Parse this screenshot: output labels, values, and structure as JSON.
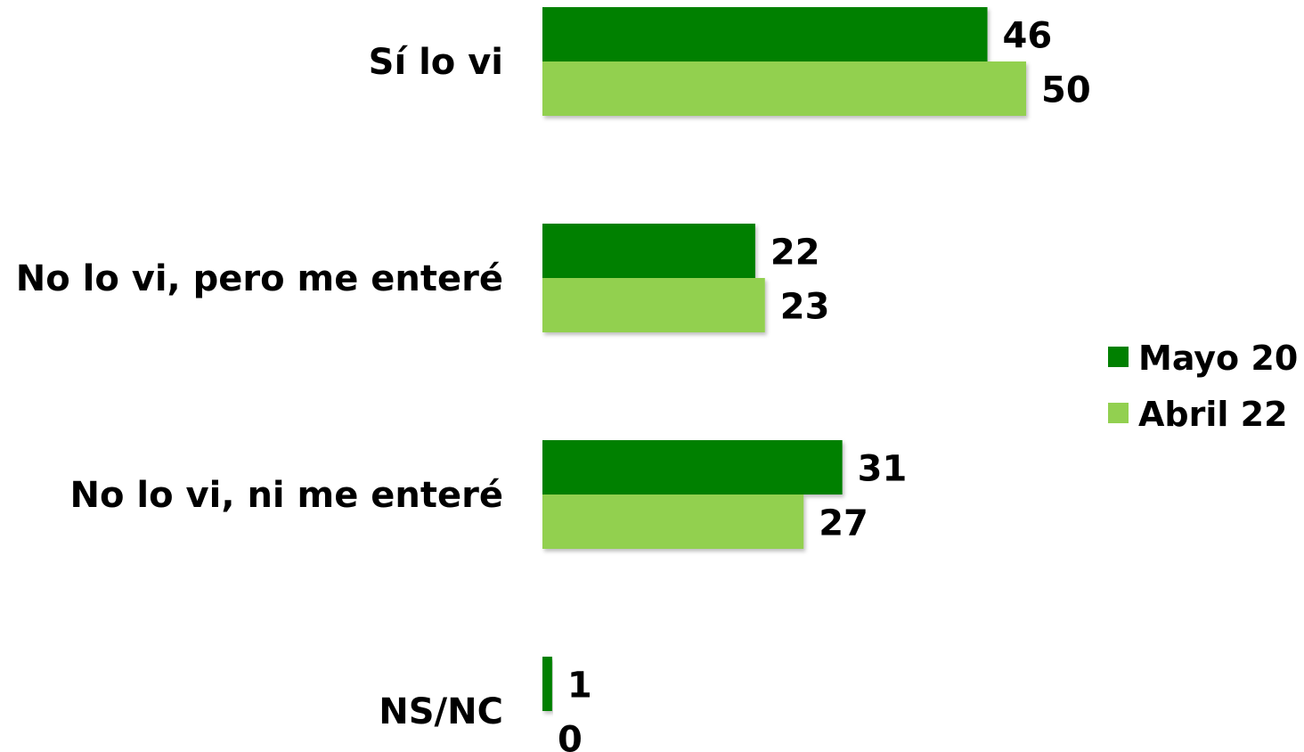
{
  "chart_data": {
    "type": "bar",
    "orientation": "horizontal",
    "categories": [
      "Sí lo vi",
      "No lo vi, pero me enteré",
      "No lo vi, ni me enteré",
      "NS/NC"
    ],
    "series": [
      {
        "name": "Mayo 20",
        "values": [
          46,
          22,
          31,
          1
        ],
        "color": "#008000"
      },
      {
        "name": "Abril 22",
        "values": [
          50,
          23,
          27,
          0
        ],
        "color": "#92d050"
      }
    ],
    "xlim": [
      0,
      50
    ],
    "grid": false,
    "legend_position": "right"
  }
}
